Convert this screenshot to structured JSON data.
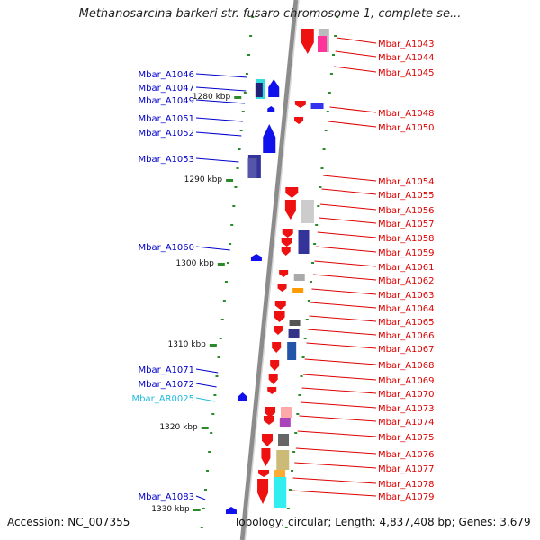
{
  "title": "Methanosarcina barkeri str. fusaro chromosome 1, complete se...",
  "footer": {
    "accession": "Accession: NC_007355",
    "topology": "Topology: circular; Length: 4,837,408 bp; Genes: 3,679"
  },
  "colors": {
    "backbone": "#8c8c8c",
    "forward_label": "#dd0000",
    "reverse_label": "#0000cc",
    "rna_label": "#22bbdd",
    "tick_dot": "#2a8a2a"
  },
  "ticks": [
    "1280 kbp",
    "1290 kbp",
    "1300 kbp",
    "1310 kbp",
    "1320 kbp",
    "1330 kbp"
  ],
  "genes_forward": [
    "Mbar_A1043",
    "Mbar_A1044",
    "Mbar_A1045",
    "Mbar_A1048",
    "Mbar_A1050",
    "Mbar_A1054",
    "Mbar_A1055",
    "Mbar_A1056",
    "Mbar_A1057",
    "Mbar_A1058",
    "Mbar_A1059",
    "Mbar_A1061",
    "Mbar_A1062",
    "Mbar_A1063",
    "Mbar_A1064",
    "Mbar_A1065",
    "Mbar_A1066",
    "Mbar_A1067",
    "Mbar_A1068",
    "Mbar_A1069",
    "Mbar_A1070",
    "Mbar_A1073",
    "Mbar_A1074",
    "Mbar_A1075",
    "Mbar_A1076",
    "Mbar_A1077",
    "Mbar_A1078",
    "Mbar_A1079"
  ],
  "genes_reverse": [
    "Mbar_A1046",
    "Mbar_A1047",
    "Mbar_A1049",
    "Mbar_A1051",
    "Mbar_A1052",
    "Mbar_A1053",
    "Mbar_A1060",
    "Mbar_A1071",
    "Mbar_A1072",
    "Mbar_AR0025",
    "Mbar_A1083"
  ]
}
